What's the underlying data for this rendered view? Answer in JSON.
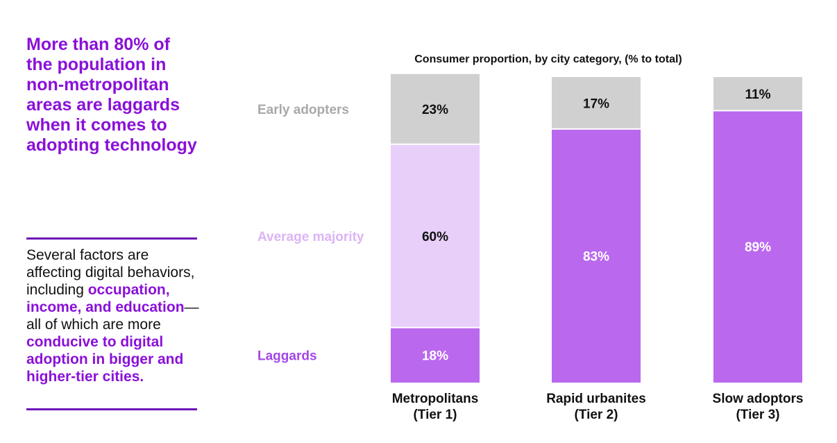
{
  "headline": "More than 80% of the population in non-metropolitan areas are laggards when it comes to adopting technology",
  "body": {
    "part1": "Several factors are affecting digital behaviors, including ",
    "highlight1": "occupation, income, and education",
    "part2": "—all of which are more ",
    "highlight2": "conducive to digital adoption in bigger and higher-tier cities."
  },
  "colors": {
    "accent": "#8a10d8",
    "rule": "#6d14b8",
    "laggards": "#ba68ee",
    "average_majority": "#e8cff9",
    "early_adopters": "#d0d0d0",
    "early_adopters_label": "#a9a9a9",
    "average_majority_label": "#dcb4f5",
    "laggards_label": "#a445e8"
  },
  "chart_data": {
    "type": "bar",
    "stacked": true,
    "title": "Consumer proportion, by city category, (% to total)",
    "categories": [
      [
        "Metropolitans",
        "(Tier 1)"
      ],
      [
        "Rapid urbanites",
        "(Tier 2)"
      ],
      [
        "Slow adoptors",
        "(Tier 3)"
      ]
    ],
    "series": [
      {
        "name": "Laggards",
        "values": [
          18,
          83,
          89
        ],
        "labels": [
          "18%",
          "83%",
          "89%"
        ]
      },
      {
        "name": "Average majority",
        "values": [
          60,
          null,
          null
        ],
        "labels": [
          "60%",
          "",
          ""
        ]
      },
      {
        "name": "Early adopters",
        "values": [
          23,
          17,
          11
        ],
        "labels": [
          "23%",
          "17%",
          "11%"
        ]
      }
    ],
    "ylim": [
      0,
      100
    ],
    "legend": "left",
    "grid": false
  }
}
